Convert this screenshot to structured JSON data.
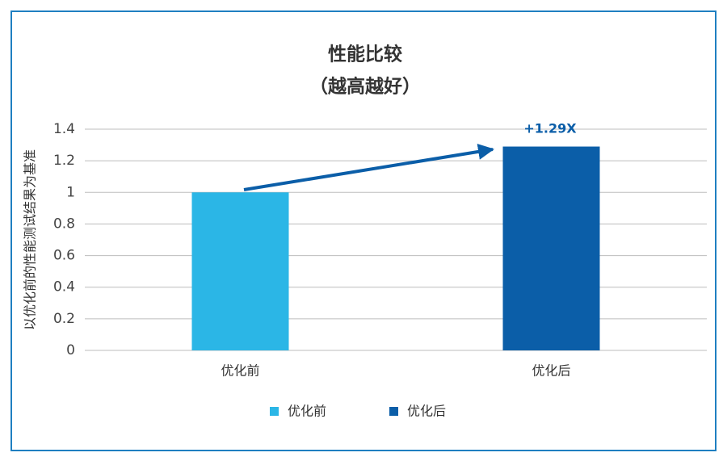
{
  "chart_data": {
    "type": "bar",
    "title": "性能比较",
    "subtitle": "（越高越好）",
    "y_label": "以优化前的性能测试结果为基准",
    "annotation": "+1.29X",
    "categories": [
      "优化前",
      "优化后"
    ],
    "series": [
      {
        "name": "优化前",
        "color": "#2bb6e6",
        "values": [
          1,
          null
        ]
      },
      {
        "name": "优化后",
        "color": "#0b5ea8",
        "values": [
          null,
          1.29
        ]
      }
    ],
    "ylim": [
      0,
      1.4
    ],
    "yticks": [
      0,
      0.2,
      0.4,
      0.6,
      0.8,
      1,
      1.2,
      1.4
    ],
    "grid": true,
    "legend": "bottom"
  }
}
